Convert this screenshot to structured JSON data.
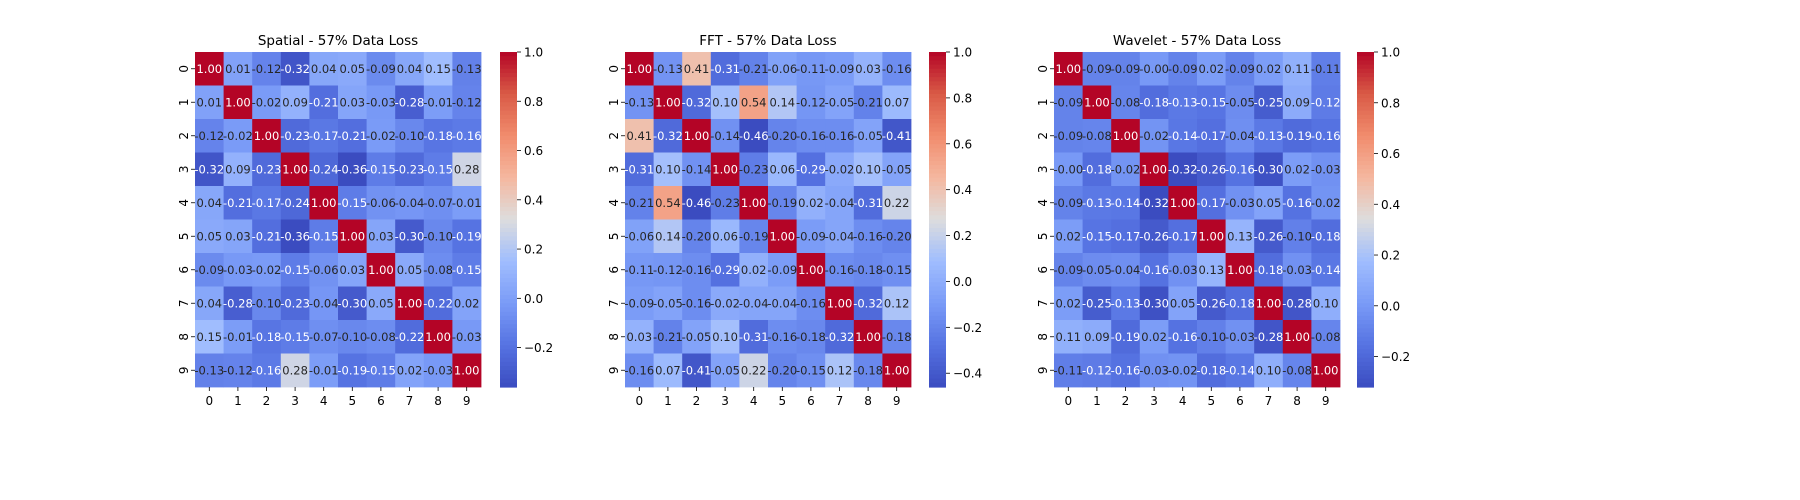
{
  "chart_data": [
    {
      "type": "heatmap",
      "title": "Spatial - 57% Data Loss",
      "x_ticks": [
        "0",
        "1",
        "2",
        "3",
        "4",
        "5",
        "6",
        "7",
        "8",
        "9"
      ],
      "y_ticks": [
        "0",
        "1",
        "2",
        "3",
        "4",
        "5",
        "6",
        "7",
        "8",
        "9"
      ],
      "colormap": "coolwarm",
      "vmin": -0.36,
      "vmax": 1.0,
      "colorbar_ticks": [
        -0.2,
        0.0,
        0.2,
        0.4,
        0.6,
        0.8,
        1.0
      ],
      "values": [
        [
          1.0,
          0.01,
          -0.12,
          -0.32,
          0.04,
          0.05,
          -0.09,
          0.04,
          0.15,
          -0.13
        ],
        [
          0.01,
          1.0,
          -0.02,
          0.09,
          -0.21,
          0.03,
          -0.03,
          -0.28,
          -0.01,
          -0.12
        ],
        [
          -0.12,
          -0.02,
          1.0,
          -0.23,
          -0.17,
          -0.21,
          -0.02,
          -0.1,
          -0.18,
          -0.16
        ],
        [
          -0.32,
          0.09,
          -0.23,
          1.0,
          -0.24,
          -0.36,
          -0.15,
          -0.23,
          -0.15,
          0.28
        ],
        [
          0.04,
          -0.21,
          -0.17,
          -0.24,
          1.0,
          -0.15,
          -0.06,
          -0.04,
          -0.07,
          -0.01
        ],
        [
          0.05,
          0.03,
          -0.21,
          -0.36,
          -0.15,
          1.0,
          0.03,
          -0.3,
          -0.1,
          -0.19
        ],
        [
          -0.09,
          -0.03,
          -0.02,
          -0.15,
          -0.06,
          0.03,
          1.0,
          0.05,
          -0.08,
          -0.15
        ],
        [
          0.04,
          -0.28,
          -0.1,
          -0.23,
          -0.04,
          -0.3,
          0.05,
          1.0,
          -0.22,
          0.02
        ],
        [
          0.15,
          -0.01,
          -0.18,
          -0.15,
          -0.07,
          -0.1,
          -0.08,
          -0.22,
          1.0,
          -0.03
        ],
        [
          -0.13,
          -0.12,
          -0.16,
          0.28,
          -0.01,
          -0.19,
          -0.15,
          0.02,
          -0.03,
          1.0
        ]
      ]
    },
    {
      "type": "heatmap",
      "title": "FFT - 57% Data Loss",
      "x_ticks": [
        "0",
        "1",
        "2",
        "3",
        "4",
        "5",
        "6",
        "7",
        "8",
        "9"
      ],
      "y_ticks": [
        "0",
        "1",
        "2",
        "3",
        "4",
        "5",
        "6",
        "7",
        "8",
        "9"
      ],
      "colormap": "coolwarm",
      "vmin": -0.46,
      "vmax": 1.0,
      "colorbar_ticks": [
        -0.4,
        -0.2,
        0.0,
        0.2,
        0.4,
        0.6,
        0.8,
        1.0
      ],
      "values": [
        [
          1.0,
          -0.13,
          0.41,
          -0.31,
          -0.21,
          -0.06,
          -0.11,
          -0.09,
          0.03,
          -0.16
        ],
        [
          -0.13,
          1.0,
          -0.32,
          0.1,
          0.54,
          0.14,
          -0.12,
          -0.05,
          -0.21,
          0.07
        ],
        [
          0.41,
          -0.32,
          1.0,
          -0.14,
          -0.46,
          -0.2,
          -0.16,
          -0.16,
          -0.05,
          -0.41
        ],
        [
          -0.31,
          0.1,
          -0.14,
          1.0,
          -0.23,
          0.06,
          -0.29,
          -0.02,
          0.1,
          -0.05
        ],
        [
          -0.21,
          0.54,
          -0.46,
          -0.23,
          1.0,
          -0.19,
          0.02,
          -0.04,
          -0.31,
          0.22
        ],
        [
          -0.06,
          0.14,
          -0.2,
          0.06,
          -0.19,
          1.0,
          -0.09,
          -0.04,
          -0.16,
          -0.2
        ],
        [
          -0.11,
          -0.12,
          -0.16,
          -0.29,
          0.02,
          -0.09,
          1.0,
          -0.16,
          -0.18,
          -0.15
        ],
        [
          -0.09,
          -0.05,
          -0.16,
          -0.02,
          -0.04,
          -0.04,
          -0.16,
          1.0,
          -0.32,
          0.12
        ],
        [
          0.03,
          -0.21,
          -0.05,
          0.1,
          -0.31,
          -0.16,
          -0.18,
          -0.32,
          1.0,
          -0.18
        ],
        [
          -0.16,
          0.07,
          -0.41,
          -0.05,
          0.22,
          -0.2,
          -0.15,
          0.12,
          -0.18,
          1.0
        ]
      ]
    },
    {
      "type": "heatmap",
      "title": "Wavelet - 57% Data Loss",
      "x_ticks": [
        "0",
        "1",
        "2",
        "3",
        "4",
        "5",
        "6",
        "7",
        "8",
        "9"
      ],
      "y_ticks": [
        "0",
        "1",
        "2",
        "3",
        "4",
        "5",
        "6",
        "7",
        "8",
        "9"
      ],
      "colormap": "coolwarm",
      "vmin": -0.32,
      "vmax": 1.0,
      "colorbar_ticks": [
        -0.2,
        0.0,
        0.2,
        0.4,
        0.6,
        0.8,
        1.0
      ],
      "values": [
        [
          1.0,
          -0.09,
          -0.09,
          -0.0,
          -0.09,
          0.02,
          -0.09,
          0.02,
          0.11,
          -0.11
        ],
        [
          -0.09,
          1.0,
          -0.08,
          -0.18,
          -0.13,
          -0.15,
          -0.05,
          -0.25,
          0.09,
          -0.12
        ],
        [
          -0.09,
          -0.08,
          1.0,
          -0.02,
          -0.14,
          -0.17,
          -0.04,
          -0.13,
          -0.19,
          -0.16
        ],
        [
          -0.0,
          -0.18,
          -0.02,
          1.0,
          -0.32,
          -0.26,
          -0.16,
          -0.3,
          0.02,
          -0.03
        ],
        [
          -0.09,
          -0.13,
          -0.14,
          -0.32,
          1.0,
          -0.17,
          -0.03,
          0.05,
          -0.16,
          -0.02
        ],
        [
          0.02,
          -0.15,
          -0.17,
          -0.26,
          -0.17,
          1.0,
          0.13,
          -0.26,
          -0.1,
          -0.18
        ],
        [
          -0.09,
          -0.05,
          -0.04,
          -0.16,
          -0.03,
          0.13,
          1.0,
          -0.18,
          -0.03,
          -0.14
        ],
        [
          0.02,
          -0.25,
          -0.13,
          -0.3,
          0.05,
          -0.26,
          -0.18,
          1.0,
          -0.28,
          0.1
        ],
        [
          0.11,
          0.09,
          -0.19,
          0.02,
          -0.16,
          -0.1,
          -0.03,
          -0.28,
          1.0,
          -0.08
        ],
        [
          -0.11,
          -0.12,
          -0.16,
          -0.03,
          -0.02,
          -0.18,
          -0.14,
          0.1,
          -0.08,
          1.0
        ]
      ]
    }
  ]
}
